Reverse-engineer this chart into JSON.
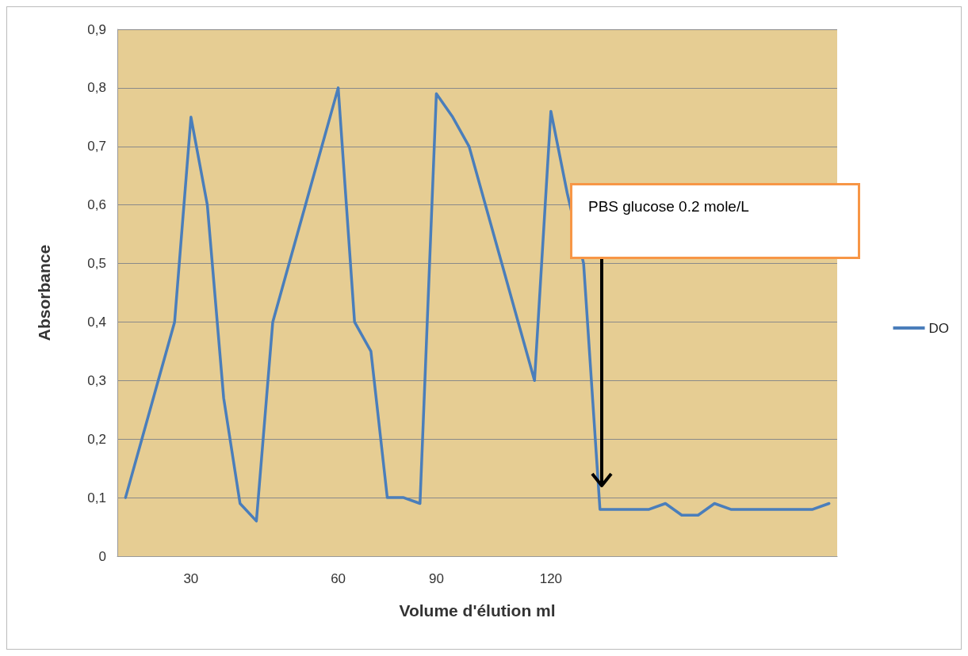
{
  "chart_data": {
    "type": "line",
    "xlabel": "Volume d'élution ml",
    "ylabel": "Absorbance",
    "categories": [
      null,
      null,
      null,
      null,
      "30",
      null,
      null,
      null,
      null,
      null,
      null,
      null,
      null,
      "60",
      null,
      null,
      null,
      null,
      null,
      "90",
      null,
      null,
      null,
      null,
      null,
      null,
      "120",
      null,
      null,
      null,
      null,
      null,
      null,
      null,
      null,
      null,
      null,
      null,
      null,
      null,
      null,
      null,
      null,
      null
    ],
    "series": [
      {
        "name": "DO",
        "color": "#4a7ebb",
        "values": [
          0.1,
          0.2,
          0.3,
          0.4,
          0.75,
          0.6,
          0.27,
          0.09,
          0.06,
          0.4,
          0.5,
          0.6,
          0.7,
          0.8,
          0.4,
          0.35,
          0.1,
          0.1,
          0.09,
          0.79,
          0.75,
          0.7,
          0.6,
          0.5,
          0.4,
          0.3,
          0.76,
          0.62,
          0.5,
          0.08,
          0.08,
          0.08,
          0.08,
          0.09,
          0.07,
          0.07,
          0.09,
          0.08,
          0.08,
          0.08,
          0.08,
          0.08,
          0.08,
          0.09
        ]
      }
    ],
    "ylim": [
      0,
      0.9
    ],
    "yticks": [
      0,
      {
        "value": 0.1,
        "label": "0,1"
      },
      {
        "value": 0.2,
        "label": "0,2"
      },
      {
        "value": 0.3,
        "label": "0,3"
      },
      {
        "value": 0.4,
        "label": "0,4"
      },
      {
        "value": 0.5,
        "label": "0,5"
      },
      {
        "value": 0.6,
        "label": "0,6"
      },
      {
        "value": 0.7,
        "label": "0,7"
      },
      {
        "value": 0.8,
        "label": "0,8"
      },
      {
        "value": 0.9,
        "label": "0,9"
      }
    ],
    "grid": "y",
    "legend": "right",
    "marker": "none",
    "line_style": "solid",
    "annotations": [
      "PBS glucose 0.2 mole/L"
    ]
  }
}
